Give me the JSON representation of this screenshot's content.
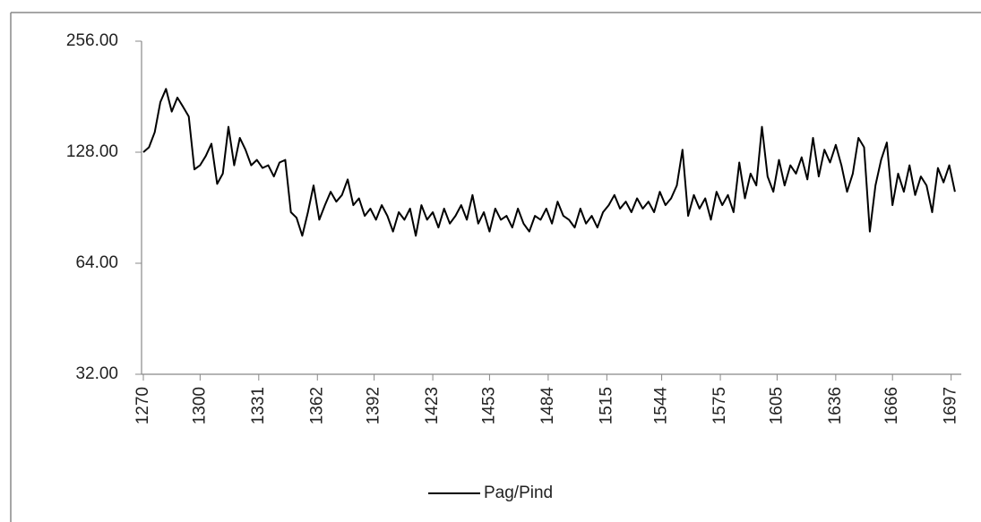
{
  "chart_data": {
    "type": "line",
    "log_scale": "y",
    "grid": false,
    "legend": "bottom",
    "x": [
      1270,
      1273,
      1276,
      1279,
      1282,
      1285,
      1288,
      1291,
      1294,
      1297,
      1300,
      1303,
      1306,
      1309,
      1312,
      1315,
      1318,
      1321,
      1324,
      1327,
      1330,
      1333,
      1336,
      1339,
      1342,
      1345,
      1348,
      1351,
      1354,
      1357,
      1360,
      1363,
      1366,
      1369,
      1372,
      1375,
      1378,
      1381,
      1384,
      1387,
      1390,
      1393,
      1396,
      1399,
      1402,
      1405,
      1408,
      1411,
      1414,
      1417,
      1420,
      1423,
      1426,
      1429,
      1432,
      1435,
      1438,
      1441,
      1444,
      1447,
      1450,
      1453,
      1456,
      1459,
      1462,
      1465,
      1468,
      1471,
      1474,
      1477,
      1480,
      1483,
      1486,
      1489,
      1492,
      1495,
      1498,
      1501,
      1504,
      1507,
      1510,
      1513,
      1516,
      1519,
      1522,
      1525,
      1528,
      1531,
      1534,
      1537,
      1540,
      1543,
      1546,
      1549,
      1552,
      1555,
      1558,
      1561,
      1564,
      1567,
      1570,
      1573,
      1576,
      1579,
      1582,
      1585,
      1588,
      1591,
      1594,
      1597,
      1600,
      1603,
      1606,
      1609,
      1612,
      1615,
      1618,
      1621,
      1624,
      1627,
      1630,
      1633,
      1636,
      1639,
      1642,
      1645,
      1648,
      1651,
      1654,
      1657,
      1660,
      1663,
      1666,
      1669,
      1672,
      1675,
      1678,
      1681,
      1684,
      1687,
      1690,
      1693,
      1696,
      1699
    ],
    "series": [
      {
        "name": "Pag/Pind",
        "color": "#000000",
        "values": [
          128,
          132,
          145,
          175,
          190,
          165,
          180,
          170,
          160,
          115,
          118,
          125,
          135,
          105,
          112,
          150,
          118,
          140,
          130,
          118,
          122,
          116,
          118,
          110,
          120,
          122,
          88,
          85,
          76,
          88,
          104,
          84,
          92,
          100,
          94,
          98,
          108,
          92,
          96,
          86,
          90,
          84,
          92,
          86,
          78,
          88,
          84,
          90,
          76,
          92,
          84,
          88,
          80,
          90,
          82,
          86,
          92,
          84,
          98,
          82,
          88,
          78,
          90,
          84,
          86,
          80,
          90,
          82,
          78,
          86,
          84,
          90,
          82,
          94,
          86,
          84,
          80,
          90,
          82,
          86,
          80,
          88,
          92,
          98,
          90,
          94,
          88,
          96,
          90,
          94,
          88,
          100,
          92,
          96,
          104,
          130,
          86,
          98,
          90,
          96,
          84,
          100,
          92,
          98,
          88,
          120,
          96,
          112,
          104,
          150,
          110,
          100,
          122,
          104,
          118,
          112,
          124,
          108,
          140,
          110,
          130,
          120,
          134,
          118,
          100,
          112,
          140,
          132,
          78,
          104,
          122,
          136,
          92,
          112,
          100,
          118,
          98,
          110,
          104,
          88,
          116,
          106,
          118,
          100
        ]
      }
    ],
    "xlim": [
      1270,
      1700
    ],
    "xticks": [
      1270,
      1300,
      1331,
      1362,
      1392,
      1423,
      1453,
      1484,
      1515,
      1544,
      1575,
      1605,
      1636,
      1666,
      1697
    ],
    "ylim": [
      32,
      256
    ],
    "yticks": [
      {
        "value": 32,
        "label": "32.00"
      },
      {
        "value": 64,
        "label": "64.00"
      },
      {
        "value": 128,
        "label": "128.00"
      },
      {
        "value": 256,
        "label": "256.00"
      }
    ]
  }
}
